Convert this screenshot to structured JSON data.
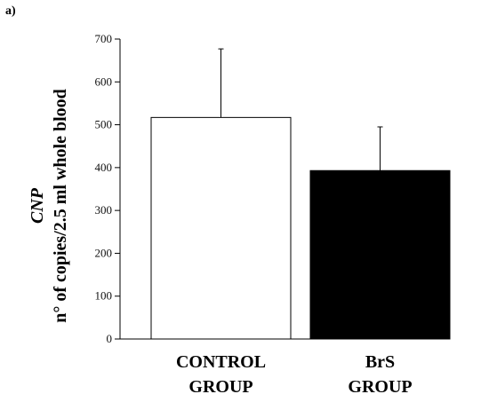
{
  "panel_label": "a)",
  "chart_data": {
    "type": "bar",
    "categories": [
      [
        "CONTROL",
        "GROUP"
      ],
      [
        "BrS",
        "GROUP"
      ]
    ],
    "values": [
      517,
      393
    ],
    "error_upper": [
      677,
      495
    ],
    "bar_colors": [
      "#ffffff",
      "#000000"
    ],
    "bar_stroke": "#000000",
    "ylabel_line1": "CNP",
    "ylabel_line2": "n° of copies/2.5 ml whole blood",
    "ylim": [
      0,
      700
    ],
    "yticks": [
      0,
      100,
      200,
      300,
      400,
      500,
      600,
      700
    ],
    "grid": false,
    "legend": "none"
  }
}
